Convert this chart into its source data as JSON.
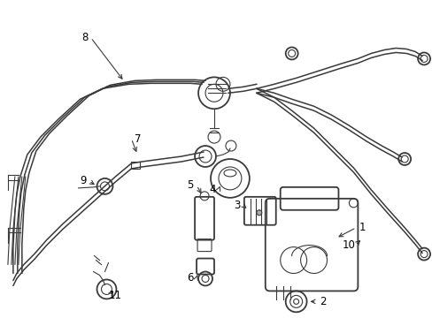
{
  "bg_color": "#ffffff",
  "line_color": "#3a3a3a",
  "label_color": "#000000",
  "figsize": [
    4.89,
    3.6
  ],
  "dpi": 100,
  "lw_main": 1.3,
  "lw_thin": 0.8,
  "lw_hose": 1.1
}
